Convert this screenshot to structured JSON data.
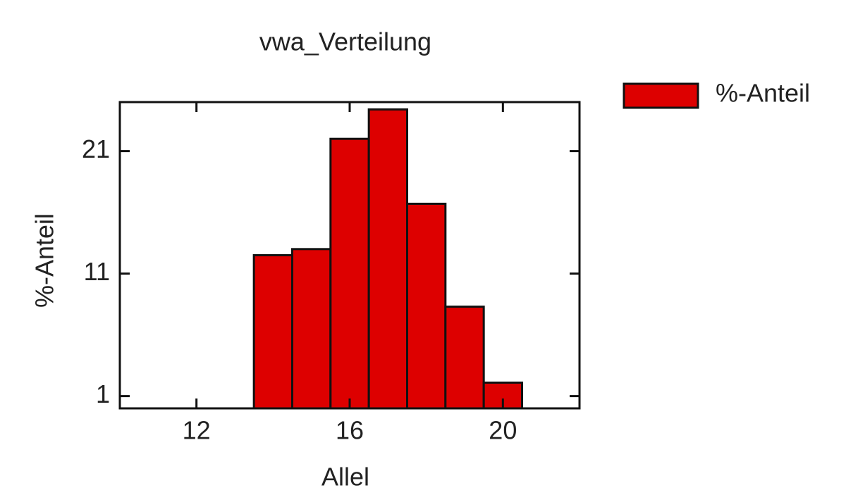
{
  "chart_data": {
    "type": "histogram",
    "title": "vwa_Verteilung",
    "x_label": "Allel",
    "y_label": "%-Anteil",
    "bins": [
      13.5,
      14.5,
      15.5,
      16.5,
      17.5,
      18.5,
      19.5,
      20.5
    ],
    "series": [
      {
        "name": "%-Anteil",
        "color": "#dd0000",
        "values": [
          12.5,
          13,
          22,
          24.4,
          16.7,
          8.3,
          2.1
        ]
      }
    ],
    "xlim": [
      10,
      22
    ],
    "xticks": [
      12,
      16,
      20
    ],
    "ylim": [
      0,
      25
    ],
    "yticks": [
      1,
      11,
      21
    ],
    "legend": "right"
  }
}
